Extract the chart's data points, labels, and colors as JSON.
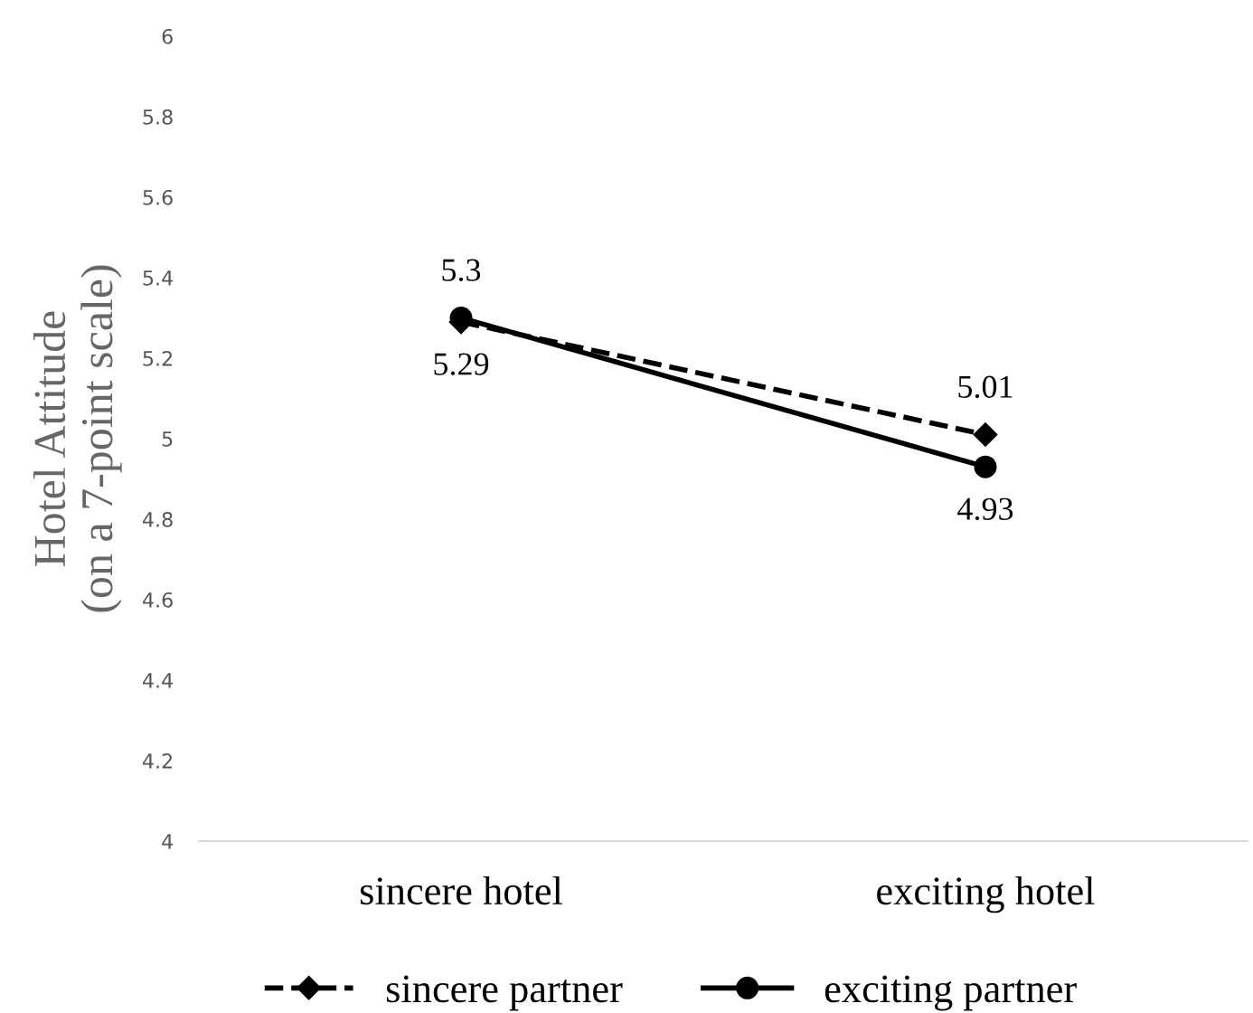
{
  "chart_data": {
    "type": "line",
    "ylabel": "Hotel Attitude\n(on a 7-point scale)",
    "categories": [
      "sincere hotel",
      "exciting hotel"
    ],
    "series": [
      {
        "name": "sincere partner",
        "color": "#000000",
        "values": [
          5.29,
          5.01
        ],
        "marker": "diamond",
        "line_style": "dashed",
        "value_labels": [
          "5.29",
          "5.01"
        ]
      },
      {
        "name": "exciting partner",
        "color": "#000000",
        "values": [
          5.3,
          4.93
        ],
        "marker": "circle",
        "line_style": "solid",
        "value_labels": [
          "5.3",
          "4.93"
        ]
      }
    ],
    "ylim": [
      4,
      6
    ],
    "yticks": [
      4,
      4.2,
      4.4,
      4.6,
      4.8,
      5,
      5.2,
      5.4,
      5.6,
      5.8,
      6
    ],
    "grid": false,
    "legend": "bottom"
  }
}
